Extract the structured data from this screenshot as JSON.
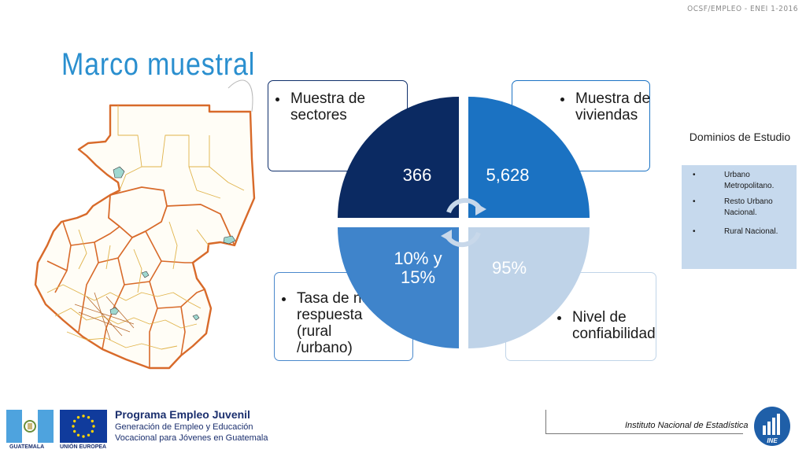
{
  "header": {
    "tag": "OCSF/EMPLEO - ENEI 1-2016"
  },
  "title": "Marco muestral",
  "cards": {
    "sectores": "Muestra de sectores",
    "viviendas": "Muestra de viviendas",
    "no_respuesta": "Tasa de no respuesta (rural /urbano)",
    "confiabilidad": "Nivel de confiabilidad"
  },
  "quadrants": {
    "q1": "366",
    "q2": "5,628",
    "q3": "10% y 15%",
    "q4": "95%"
  },
  "colors": {
    "q1": "#0b2a62",
    "q2": "#1b72c2",
    "q3": "#3f84cb",
    "q4": "#bfd3e8",
    "title": "#2a8fcf"
  },
  "dominios": {
    "title": "Dominios de Estudio",
    "items": [
      "Urbano Metropolitano.",
      "Resto Urbano Nacional.",
      "Rural Nacional."
    ]
  },
  "footer": {
    "programa_title": "Programa Empleo Juvenil",
    "programa_line1": "Generación de Empleo y Educación",
    "programa_line2": "Vocacional para Jóvenes en Guatemala",
    "guatemala_label": "GUATEMALA",
    "ue_label": "UNIÓN EUROPEA",
    "institute": "Instituto Nacional de Estadística",
    "ine_logo": "INE"
  },
  "icons": [
    "cycle-arrows-icon",
    "guatemala-flag-icon",
    "eu-flag-icon",
    "ine-logo-icon",
    "guatemala-map"
  ]
}
